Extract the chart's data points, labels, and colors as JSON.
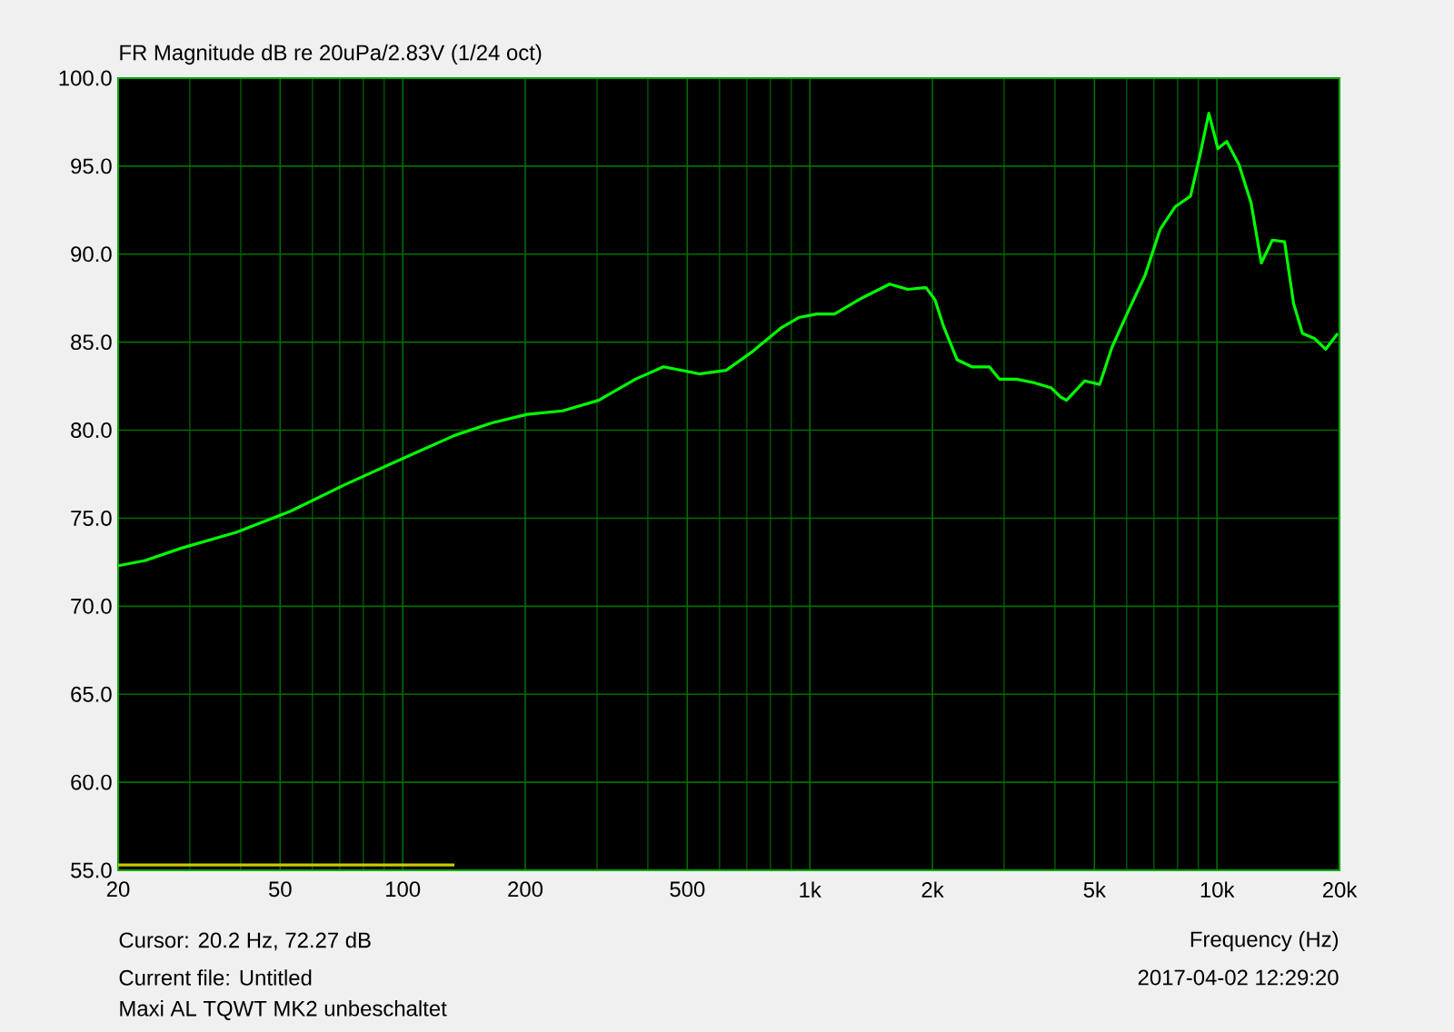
{
  "chart_data": {
    "type": "line",
    "title": "FR Magnitude dB re 20uPa/2.83V (1/24 oct)",
    "xlabel": "Frequency (Hz)",
    "annotations": [
      "Cursor: 20.2 Hz, 72.27 dB",
      "Current file: Untitled",
      "Maxi AL TQWT MK2 unbeschaltet",
      "2017-04-02  12:29:20"
    ],
    "log": "x",
    "grid": true,
    "marker": "none",
    "line_style": "solid",
    "xlim": [
      20,
      20000
    ],
    "ylim": [
      55,
      100
    ],
    "xticks": [
      20,
      {
        "value": 30,
        "label": null
      },
      {
        "value": 40,
        "label": null
      },
      50,
      {
        "value": 60,
        "label": null
      },
      {
        "value": 70,
        "label": null
      },
      {
        "value": 80,
        "label": null
      },
      {
        "value": 90,
        "label": null
      },
      100,
      200,
      {
        "value": 300,
        "label": null
      },
      {
        "value": 400,
        "label": null
      },
      500,
      {
        "value": 600,
        "label": null
      },
      {
        "value": 700,
        "label": null
      },
      {
        "value": 800,
        "label": null
      },
      {
        "value": 900,
        "label": null
      },
      {
        "value": 1000,
        "label": "1k"
      },
      {
        "value": 2000,
        "label": "2k"
      },
      {
        "value": 3000,
        "label": null
      },
      {
        "value": 4000,
        "label": null
      },
      {
        "value": 5000,
        "label": "5k"
      },
      {
        "value": 6000,
        "label": null
      },
      {
        "value": 7000,
        "label": null
      },
      {
        "value": 8000,
        "label": null
      },
      {
        "value": 9000,
        "label": null
      },
      {
        "value": 10000,
        "label": "10k"
      },
      {
        "value": 20000,
        "label": "20k"
      }
    ],
    "yticks": [
      {
        "value": 55,
        "label": "55.0"
      },
      {
        "value": 60,
        "label": "60.0"
      },
      {
        "value": 65,
        "label": "65.0"
      },
      {
        "value": 70,
        "label": "70.0"
      },
      {
        "value": 75,
        "label": "75.0"
      },
      {
        "value": 80,
        "label": "80.0"
      },
      {
        "value": 85,
        "label": "85.0"
      },
      {
        "value": 90,
        "label": "90.0"
      },
      {
        "value": 95,
        "label": "95.0"
      },
      {
        "value": 100,
        "label": "100.0"
      }
    ],
    "series": [
      {
        "color": "#00ff00",
        "x": [
          20,
          23.3,
          28.6,
          39,
          53,
          72,
          98,
          134,
          165,
          202,
          247,
          303,
          373,
          437,
          535,
          623,
          726,
          848,
          939,
          1040,
          1150,
          1340,
          1570,
          1740,
          1930,
          2030,
          2130,
          2300,
          2500,
          2760,
          2920,
          3220,
          3550,
          3920,
          4120,
          4270,
          4730,
          5150,
          5520,
          6010,
          6660,
          7250,
          7900,
          8610,
          9060,
          9550,
          10050,
          10570,
          11320,
          12130,
          12850,
          13680,
          14660,
          15420,
          16220,
          17380,
          18490,
          19800
        ],
        "values": [
          72.3,
          72.6,
          73.3,
          74.2,
          75.4,
          76.9,
          78.3,
          79.7,
          80.4,
          80.9,
          81.1,
          81.7,
          82.9,
          83.6,
          83.2,
          83.4,
          84.5,
          85.8,
          86.4,
          86.6,
          86.6,
          87.5,
          88.3,
          88.0,
          88.1,
          87.4,
          85.9,
          84.0,
          83.6,
          83.6,
          82.9,
          82.9,
          82.7,
          82.4,
          81.9,
          81.7,
          82.8,
          82.6,
          84.7,
          86.6,
          88.8,
          91.4,
          92.7,
          93.3,
          95.5,
          98.0,
          96.0,
          96.4,
          95.1,
          92.9,
          89.5,
          90.8,
          90.7,
          87.2,
          85.5,
          85.2,
          84.6,
          85.5
        ]
      },
      {
        "color": "#c8c800",
        "x": [
          20,
          134
        ],
        "values": [
          55.3,
          55.3
        ]
      }
    ]
  }
}
